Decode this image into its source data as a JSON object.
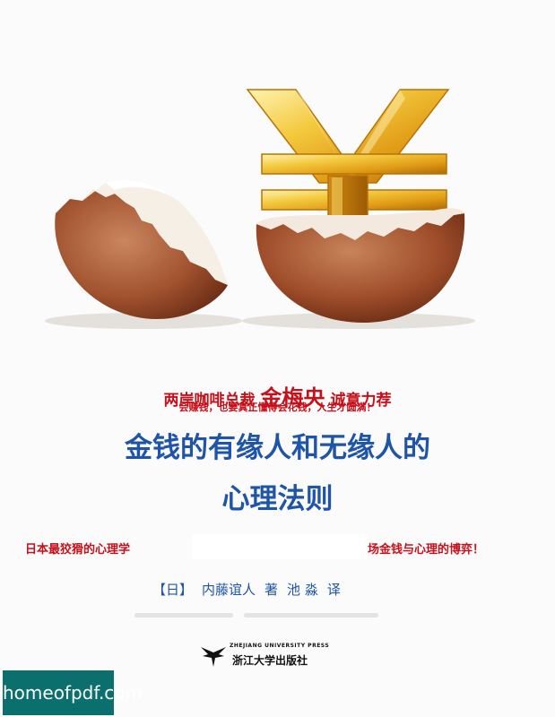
{
  "recommendation": {
    "prefix": "两岸咖啡总裁",
    "name": "金梅央",
    "suffix": "诚意力荐"
  },
  "tagline": "会赚钱，也要真正懂得会花钱，人生才圆满！",
  "title": {
    "line1": "金钱的有缘人和无缘人的",
    "line2": "心理法则"
  },
  "promo": {
    "left": "日本最狡猾的心理学",
    "right": "场金钱与心理的博弈！"
  },
  "author": {
    "country": "【日】",
    "name": "内藤谊人",
    "role": "著",
    "translator": "池 淼",
    "translator_role": "译"
  },
  "publisher": {
    "english": "ZHEJIANG UNIVERSITY PRESS",
    "chinese": "浙江大学出版社"
  },
  "watermark": {
    "text": "homeofpdf.com"
  },
  "colors": {
    "title_blue": "#1f55a8",
    "accent_red": "#c8101a",
    "watermark_bg": "#0b6f6e"
  }
}
